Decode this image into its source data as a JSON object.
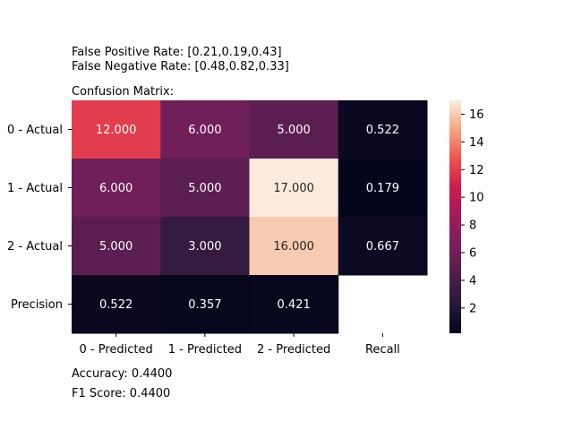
{
  "header": {
    "fpr": "False Positive Rate: [0.21,0.19,0.43]",
    "fnr": "False Negative Rate: [0.48,0.82,0.33]",
    "matrix_title": "Confusion Matrix:"
  },
  "footer": {
    "accuracy": "Accuracy: 0.4400",
    "f1": "F1 Score: 0.4400"
  },
  "chart_data": {
    "type": "heatmap",
    "row_labels": [
      "0 - Actual",
      "1 - Actual",
      "2 - Actual",
      "Precision"
    ],
    "col_labels": [
      "0 - Predicted",
      "1 - Predicted",
      "2 - Predicted",
      "Recall"
    ],
    "cells": [
      [
        "12.000",
        "6.000",
        "5.000",
        "0.522"
      ],
      [
        "6.000",
        "5.000",
        "17.000",
        "0.179"
      ],
      [
        "5.000",
        "3.000",
        "16.000",
        "0.667"
      ],
      [
        "0.522",
        "0.357",
        "0.421",
        ""
      ]
    ],
    "values": [
      [
        12,
        6,
        5,
        0.522
      ],
      [
        6,
        5,
        17,
        0.179
      ],
      [
        5,
        3,
        16,
        0.667
      ],
      [
        0.522,
        0.357,
        0.421,
        null
      ]
    ],
    "colorbar": {
      "colormap": "rocket",
      "vmin": 0.179,
      "vmax": 17,
      "ticks": [
        2,
        4,
        6,
        8,
        10,
        12,
        14,
        16
      ]
    }
  }
}
